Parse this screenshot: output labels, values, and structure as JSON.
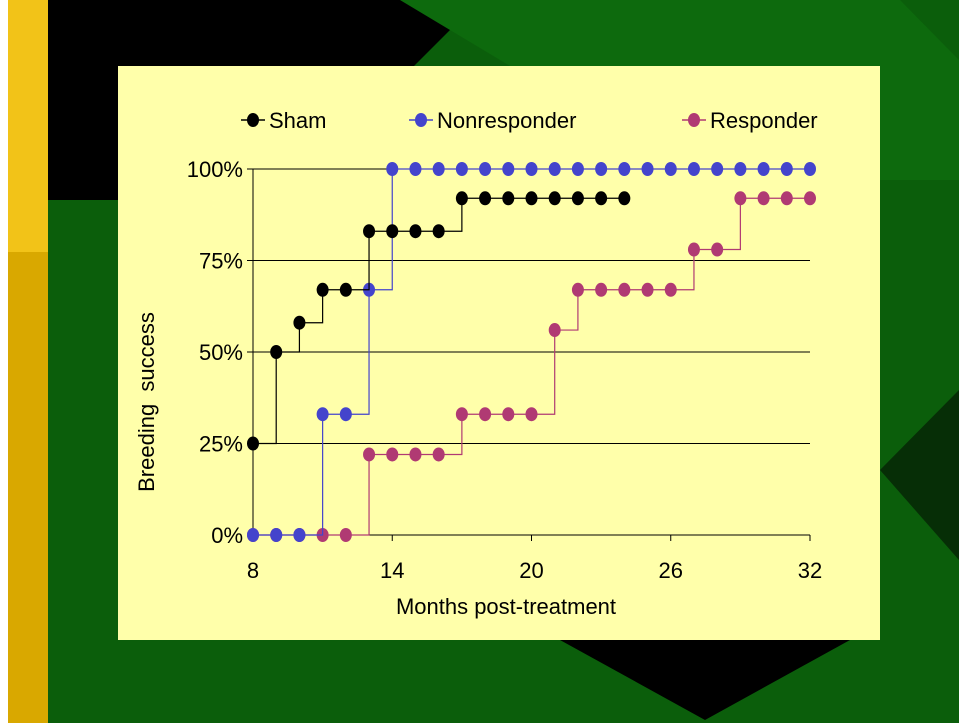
{
  "colors": {
    "panel_background": "#ffffaa",
    "slide_green": "#0b5e0b",
    "slide_dark": "#001a00",
    "left_bar_gold": "#f2c318",
    "left_bar_tan": "#d9a800"
  },
  "chart_data": {
    "type": "line",
    "step": true,
    "xlabel": "Months post-treatment",
    "ylabel": "Breeding  success",
    "xlim": [
      8,
      32
    ],
    "ylim": [
      0,
      100
    ],
    "x_ticks": [
      8,
      14,
      20,
      26,
      32
    ],
    "y_ticks": [
      0,
      25,
      50,
      75,
      100
    ],
    "y_tick_labels": [
      "0%",
      "25%",
      "50%",
      "75%",
      "100%"
    ],
    "grid": "horizontal",
    "legend_position": "top",
    "series": [
      {
        "name": "Sham",
        "color": "#000000",
        "x": [
          8,
          9,
          10,
          11,
          12,
          13,
          14,
          15,
          16,
          17,
          18,
          19,
          20,
          21,
          22,
          23,
          24
        ],
        "y": [
          25,
          50,
          58,
          67,
          67,
          83,
          83,
          83,
          83,
          92,
          92,
          92,
          92,
          92,
          92,
          92,
          92
        ]
      },
      {
        "name": "Nonresponder",
        "color": "#4444cc",
        "x": [
          8,
          9,
          10,
          11,
          12,
          13,
          14,
          15,
          16,
          17,
          18,
          19,
          20,
          21,
          22,
          23,
          24,
          25,
          26,
          27,
          28,
          29,
          30,
          31,
          32
        ],
        "y": [
          0,
          0,
          0,
          33,
          33,
          67,
          100,
          100,
          100,
          100,
          100,
          100,
          100,
          100,
          100,
          100,
          100,
          100,
          100,
          100,
          100,
          100,
          100,
          100,
          100
        ]
      },
      {
        "name": "Responder",
        "color": "#b03a73",
        "x": [
          8,
          9,
          10,
          11,
          12,
          13,
          14,
          15,
          16,
          17,
          18,
          19,
          20,
          21,
          22,
          23,
          24,
          25,
          26,
          27,
          28,
          29,
          30,
          31,
          32
        ],
        "y": [
          0,
          0,
          0,
          0,
          0,
          22,
          22,
          22,
          22,
          33,
          33,
          33,
          33,
          56,
          67,
          67,
          67,
          67,
          67,
          78,
          78,
          92,
          92,
          92,
          92
        ]
      }
    ]
  }
}
